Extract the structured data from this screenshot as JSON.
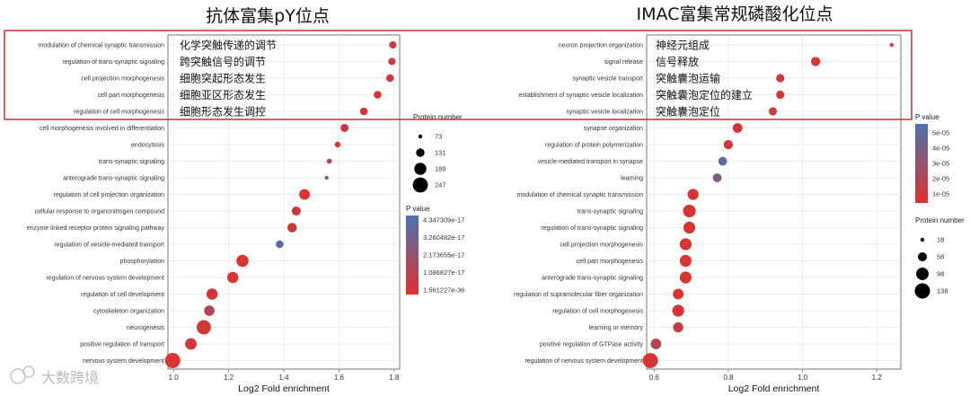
{
  "chart_data": [
    {
      "type": "scatter",
      "title": "抗体富集pY位点",
      "xlabel": "Log2 Fold enrichment",
      "xlim": [
        0.98,
        1.82
      ],
      "xticks": [
        "1.0",
        "1.2",
        "1.4",
        "1.6",
        "1.8"
      ],
      "categories": [
        "modulation of chemical synaptic transmission",
        "regulation of trans-synaptic signaling",
        "cell projection morphogenesis",
        "cell part morphogenesis",
        "regulation of cell morphogenesis",
        "cell morphogenesis involved in differentiation",
        "endocytosis",
        "trans-synaptic signaling",
        "anterograde trans-synaptic signaling",
        "regulation of cell projection organization",
        "cellular response to organonitrogen compound",
        "enzyme linked receptor protein signaling pathway",
        "regulation of vesicle-mediated transport",
        "phosphorylation",
        "regulation of nervous system development",
        "regulation of cell development",
        "cytoskeleton organization",
        "neurogenesis",
        "positive regulation of transport",
        "nervous system development"
      ],
      "x": [
        1.795,
        1.792,
        1.785,
        1.74,
        1.69,
        1.62,
        1.595,
        1.565,
        1.555,
        1.475,
        1.445,
        1.43,
        1.385,
        1.25,
        1.215,
        1.14,
        1.13,
        1.11,
        1.063,
        0.997
      ],
      "protein_number": [
        115,
        115,
        120,
        120,
        120,
        125,
        95,
        85,
        73,
        165,
        140,
        145,
        120,
        190,
        175,
        175,
        160,
        230,
        180,
        250
      ],
      "p_value_fraction": [
        0.15,
        0.15,
        0.1,
        0.05,
        0.05,
        0.15,
        0.1,
        0.35,
        0.7,
        0.05,
        0.1,
        0.1,
        0.9,
        0.05,
        0.05,
        0.1,
        0.3,
        0.1,
        0.1,
        0.05
      ],
      "annotations": [
        "化学突触传递的调节",
        "跨突触信号的调节",
        "细胞突起形态发生",
        "细胞亚区形态发生",
        "细胞形态发生调控"
      ],
      "size_legend": {
        "title": "Protein number",
        "values": [
          "73",
          "131",
          "189",
          "247"
        ]
      },
      "color_legend": {
        "title": "P value",
        "labels": [
          "4.347309e-17",
          "3.260482e-17",
          "2.173655e-17",
          "1.086827e-17",
          "1.561227e-36"
        ]
      }
    },
    {
      "type": "scatter",
      "title": "IMAC富集常规磷酸化位点",
      "xlabel": "Log2 Fold enrichment",
      "xlim": [
        0.58,
        1.265
      ],
      "xticks": [
        "0.6",
        "0.8",
        "1.0",
        "1.2"
      ],
      "categories": [
        "neuron projection organization",
        "signal release",
        "synaptic vesicle transport",
        "establishment of synaptic vesicle localization",
        "synaptic vesicle localization",
        "synapse organization",
        "regulation of protein polymerization",
        "vesicle-mediated transport in synapse",
        "learning",
        "modulation of chemical synaptic transmission",
        "trans-synaptic signaling",
        "regulation of trans-synaptic signaling",
        "cell projection morphogenesis",
        "cell part morphogenesis",
        "anterograde trans-synaptic signaling",
        "regulation of supramolecular fiber organization",
        "regulation of cell morphogenesis",
        "learning or memory",
        "positive regulation of GTPase activity",
        "regulation of nervous system development"
      ],
      "x": [
        1.24,
        1.035,
        0.94,
        0.94,
        0.92,
        0.825,
        0.8,
        0.785,
        0.77,
        0.705,
        0.695,
        0.695,
        0.685,
        0.685,
        0.685,
        0.665,
        0.665,
        0.665,
        0.605,
        0.59
      ],
      "protein_number": [
        18,
        60,
        50,
        50,
        50,
        65,
        60,
        55,
        55,
        80,
        100,
        90,
        90,
        90,
        90,
        75,
        90,
        70,
        75,
        135
      ],
      "p_value_fraction": [
        0.15,
        0.05,
        0.1,
        0.1,
        0.15,
        0.1,
        0.1,
        0.85,
        0.6,
        0.05,
        0.05,
        0.05,
        0.05,
        0.05,
        0.05,
        0.05,
        0.05,
        0.2,
        0.3,
        0.05
      ],
      "annotations": [
        "神经元组成",
        "信号释放",
        "突触囊泡运输",
        "突触囊泡定位的建立",
        "突触囊泡定位"
      ],
      "size_legend": {
        "title": "Protein number",
        "values": [
          "18",
          "58",
          "98",
          "138"
        ]
      },
      "color_legend": {
        "title": "P value",
        "labels": [
          "5e-05",
          "4e-05",
          "3e-05",
          "2e-05",
          "1e-05"
        ]
      }
    }
  ],
  "watermark": "大数跨境",
  "colors": {
    "high": "#4a72b0",
    "low": "#e0302c",
    "highlight_box": "#c83030"
  }
}
